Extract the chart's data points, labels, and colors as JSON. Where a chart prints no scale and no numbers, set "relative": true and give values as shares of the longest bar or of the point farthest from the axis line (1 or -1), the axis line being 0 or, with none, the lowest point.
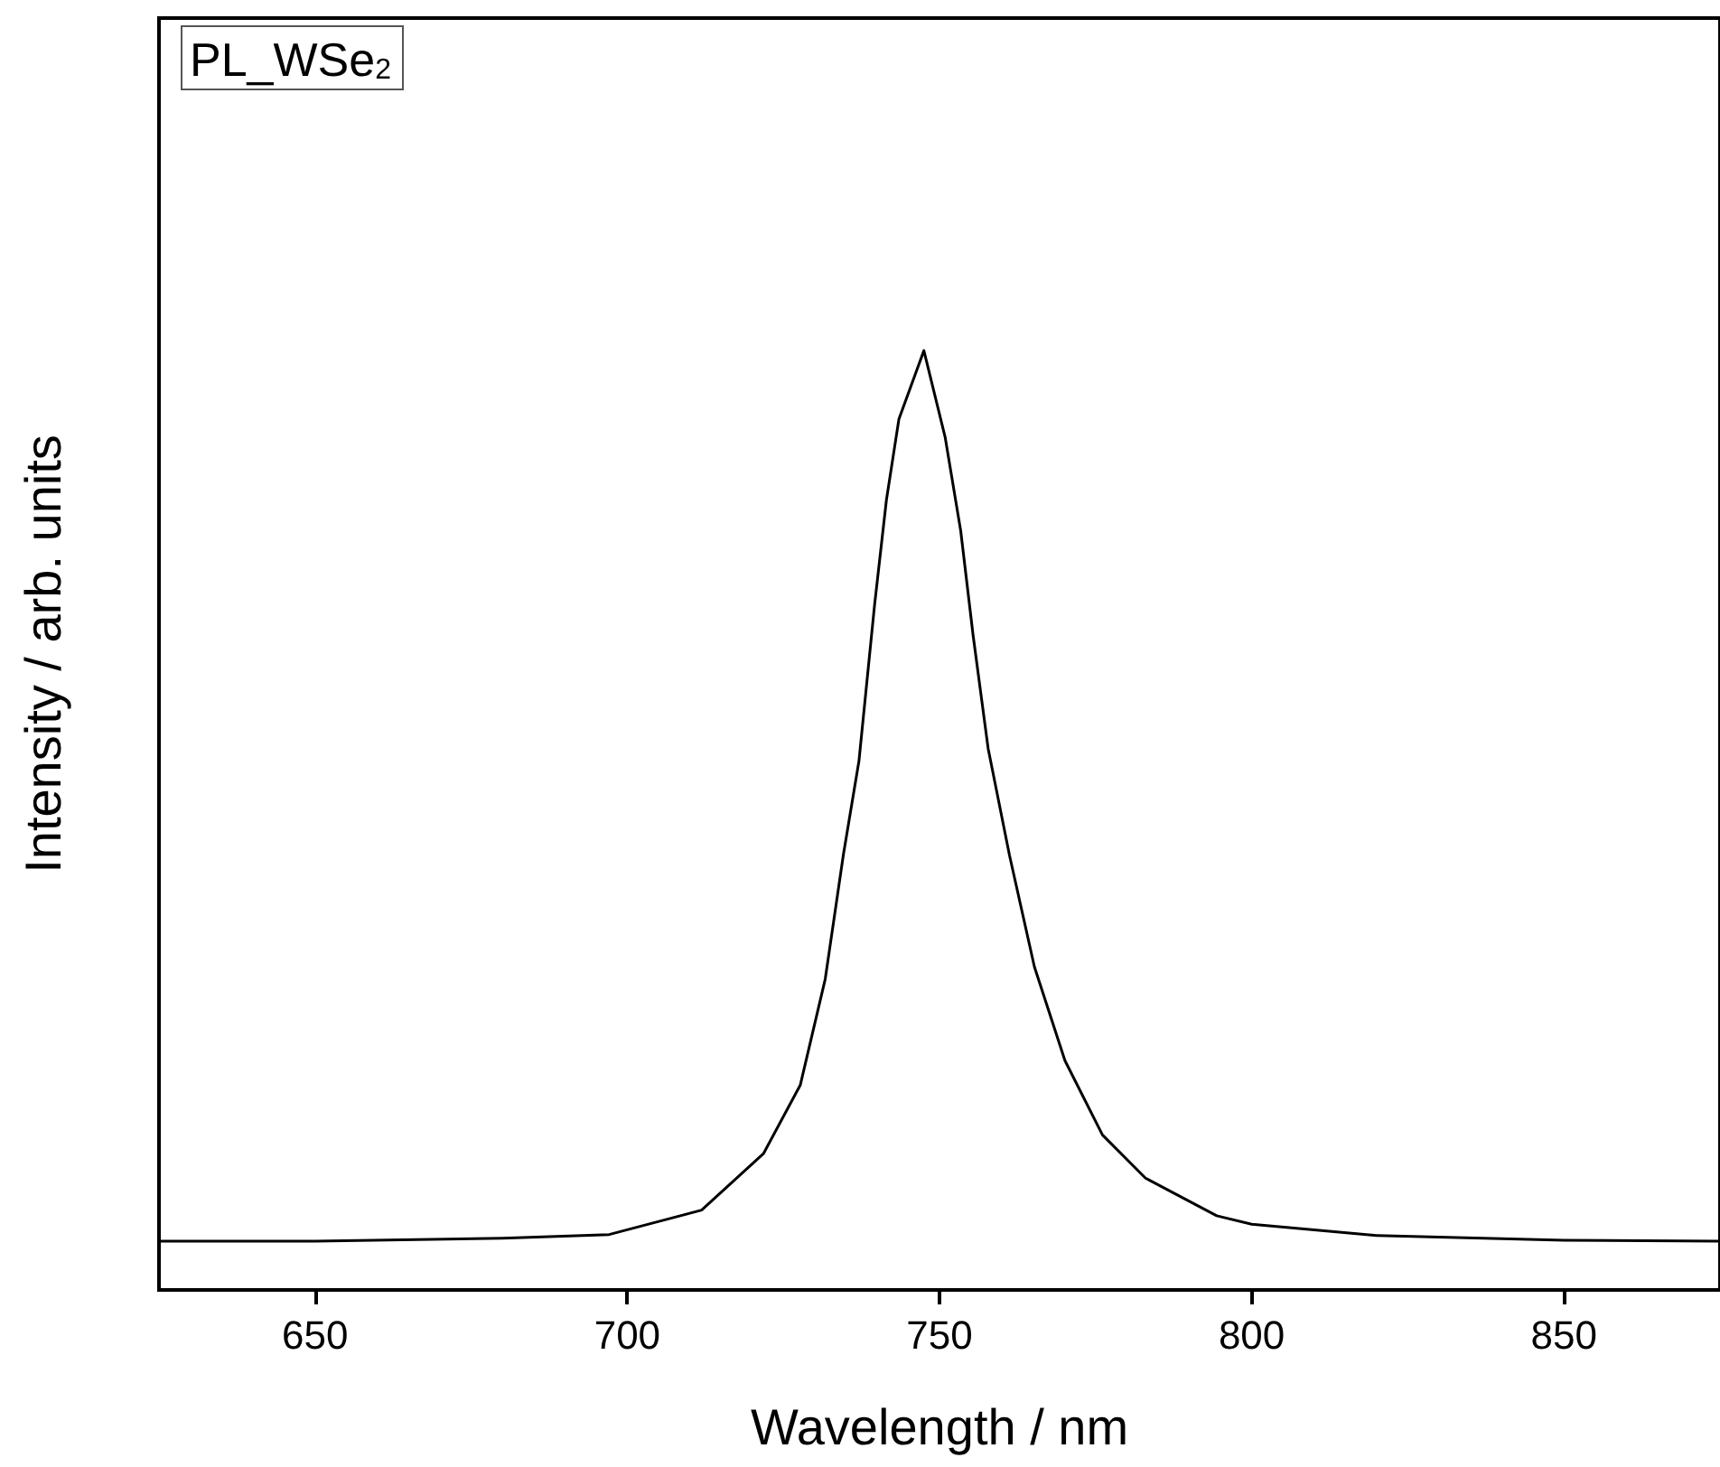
{
  "chart_data": {
    "type": "line",
    "relative": true,
    "xlabel": "Wavelength / nm",
    "ylabel": "Intensity / arb. units",
    "annotations": [
      "PL_WSe$_{2}$"
    ],
    "xlim": [
      625,
      875
    ],
    "xticks": [
      650,
      700,
      750,
      800,
      850
    ],
    "grid": false,
    "series": [
      {
        "color": "#000000",
        "x": [
          625,
          650,
          680,
          697.1,
          711.9,
          721.8,
          727.7,
          731.7,
          734.6,
          737.1,
          739.6,
          741.5,
          743.5,
          747.5,
          750.9,
          753.4,
          755.4,
          757.8,
          761.2,
          765.2,
          770.1,
          776.1,
          783,
          794.4,
          800,
          820,
          850,
          875
        ],
        "values": [
          0.052,
          0.052,
          0.055,
          0.059,
          0.085,
          0.145,
          0.218,
          0.331,
          0.463,
          0.563,
          0.729,
          0.841,
          0.927,
          1.0,
          0.908,
          0.808,
          0.696,
          0.576,
          0.463,
          0.344,
          0.244,
          0.165,
          0.119,
          0.079,
          0.07,
          0.058,
          0.053,
          0.052
        ]
      }
    ]
  }
}
